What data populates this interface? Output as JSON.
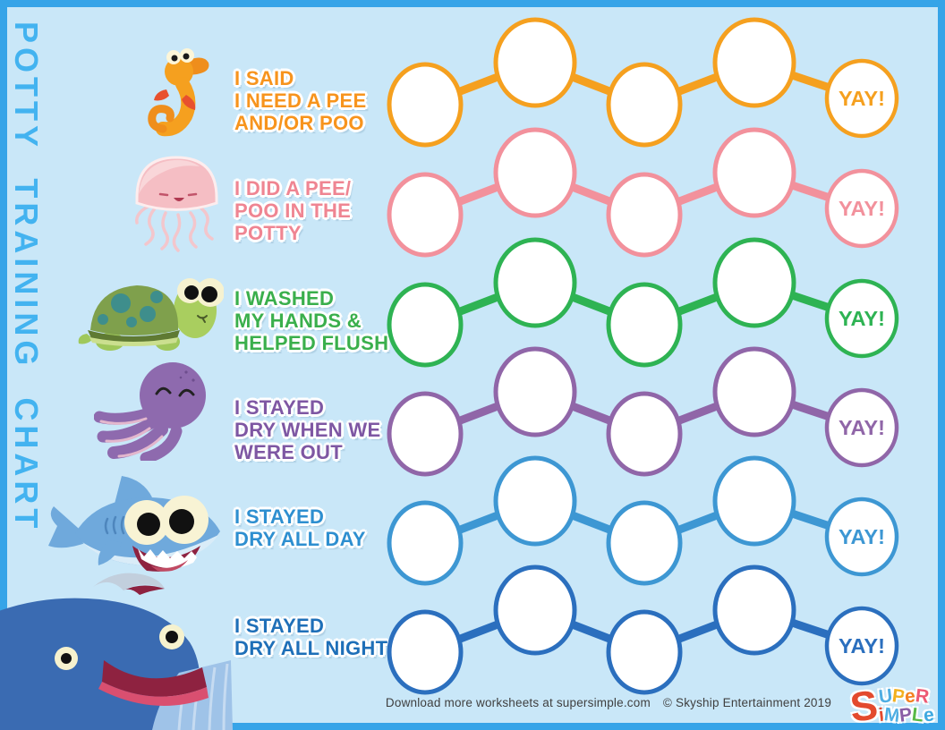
{
  "title": "POTTY TRAINING CHART",
  "colors": {
    "background": "#C9E7F8",
    "frame": "#36A4E8",
    "title": "#43B3F0"
  },
  "rows": [
    {
      "animal": "seahorse",
      "label_lines": [
        "I SAID",
        "I NEED A PEE",
        "AND/OR POO"
      ],
      "circle_color": "#F5A01F",
      "text_color": "#F7941D",
      "yay_label": "YAY!",
      "plain_circles": 4,
      "total_circles": 5
    },
    {
      "animal": "jellyfish",
      "label_lines": [
        "I DID A PEE/",
        "POO IN THE",
        "POTTY"
      ],
      "circle_color": "#F2919C",
      "text_color": "#EF8592",
      "yay_label": "YAY!",
      "plain_circles": 4,
      "total_circles": 5
    },
    {
      "animal": "turtle",
      "label_lines": [
        "I WASHED",
        "MY HANDS &",
        "HELPED FLUSH"
      ],
      "circle_color": "#2EB353",
      "text_color": "#3AAF4C",
      "yay_label": "YAY!",
      "plain_circles": 4,
      "total_circles": 5
    },
    {
      "animal": "octopus",
      "label_lines": [
        "I STAYED",
        "DRY WHEN WE",
        "WERE OUT"
      ],
      "circle_color": "#9066A8",
      "text_color": "#7E57A3",
      "yay_label": "YAY!",
      "plain_circles": 4,
      "total_circles": 5
    },
    {
      "animal": "shark",
      "label_lines": [
        "I STAYED",
        "DRY ALL DAY"
      ],
      "circle_color": "#3D97D3",
      "text_color": "#2E8FD0",
      "yay_label": "YAY!",
      "plain_circles": 4,
      "total_circles": 5
    },
    {
      "animal": "whale",
      "label_lines": [
        "I STAYED",
        "DRY ALL NIGHT"
      ],
      "circle_color": "#2B6FBE",
      "text_color": "#1E6FB8",
      "yay_label": "YAY!",
      "plain_circles": 4,
      "total_circles": 5
    }
  ],
  "footer": {
    "download_text": "Download more worksheets at supersimple.com",
    "copyright_text": "© Skyship Entertainment 2019"
  },
  "logo": {
    "big_letter": "S",
    "big_color": "#E34A2E",
    "top_letters": "UPeR",
    "top_colors": [
      "#4FAEE3",
      "#F3B01D",
      "#F58220",
      "#ED5A74"
    ],
    "bottom_letters": "iMPLe",
    "bottom_colors": [
      "#E34A2E",
      "#4FAEE3",
      "#8A5FA6",
      "#58B947",
      "#3FA9E0"
    ]
  }
}
